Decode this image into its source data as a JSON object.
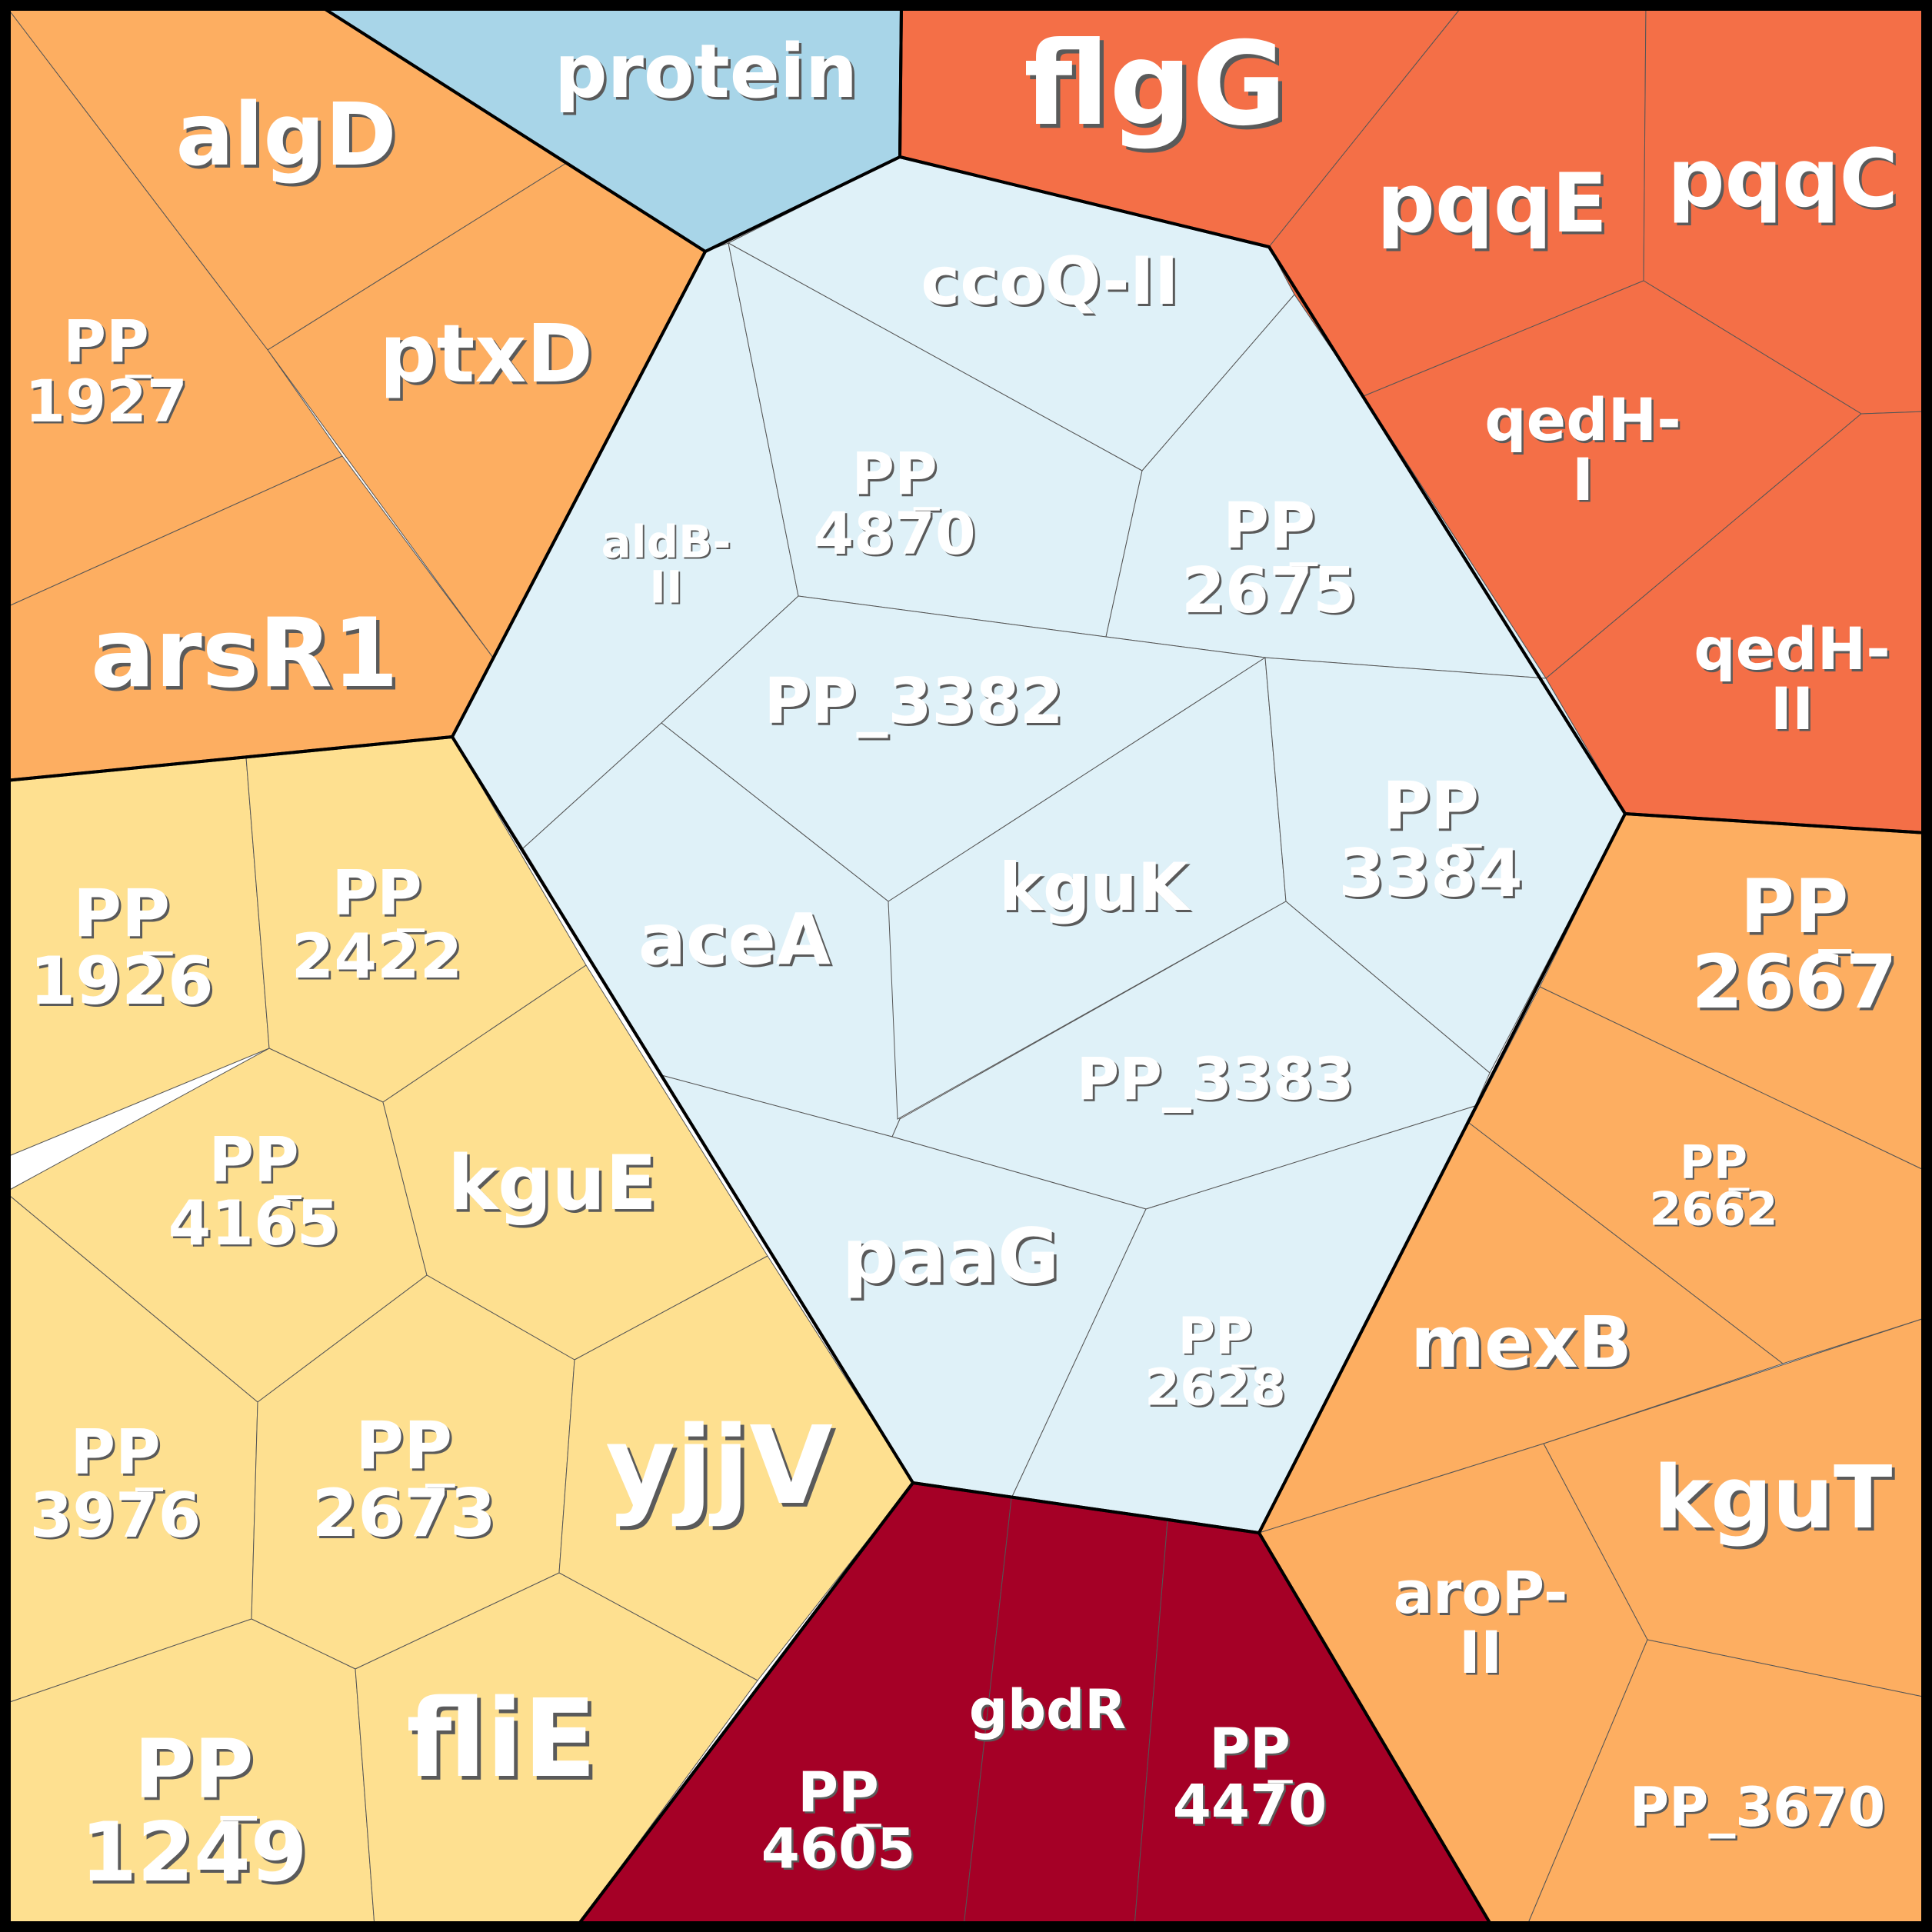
{
  "colors": {
    "grey": "#a8d5e8",
    "light_blue": "#dff1f8",
    "red_orange": "#f46f47",
    "orange": "#fdae61",
    "light_orange": "#fcb067",
    "yellow": "#fee090",
    "dark_red": "#a50026",
    "border": "#000000",
    "label": "#ffffff"
  },
  "groups": [
    {
      "id": "protein",
      "color": "grey",
      "cells": [
        {
          "label": "protein"
        }
      ]
    },
    {
      "id": "orange-left",
      "color": "orange",
      "cells": [
        {
          "label": "algD"
        },
        {
          "label": "ptxD"
        },
        {
          "label": "PP_1927"
        },
        {
          "label": "arsR1"
        }
      ]
    },
    {
      "id": "red-top",
      "color": "red_orange",
      "cells": [
        {
          "label": "flgG"
        },
        {
          "label": "pqqE"
        },
        {
          "label": "pqqC"
        },
        {
          "label": "qedH-I"
        },
        {
          "label": "qedH-II"
        }
      ]
    },
    {
      "id": "center",
      "color": "light_blue",
      "cells": [
        {
          "label": "ccoQ-II"
        },
        {
          "label": "aldB-II"
        },
        {
          "label": "PP_4870"
        },
        {
          "label": "PP_2675"
        },
        {
          "label": "PP_3382"
        },
        {
          "label": "aceA"
        },
        {
          "label": "kguK"
        },
        {
          "label": "PP_3384"
        },
        {
          "label": "PP_3383"
        },
        {
          "label": "paaG"
        },
        {
          "label": "PP_2628"
        }
      ]
    },
    {
      "id": "yellow-left",
      "color": "yellow",
      "cells": [
        {
          "label": "PP_1926"
        },
        {
          "label": "PP_2422"
        },
        {
          "label": "PP_4165"
        },
        {
          "label": "kguE"
        },
        {
          "label": "PP_3976"
        },
        {
          "label": "PP_2673"
        },
        {
          "label": "yjjV"
        },
        {
          "label": "PP_1249"
        },
        {
          "label": "fliE"
        }
      ]
    },
    {
      "id": "orange-right",
      "color": "orange",
      "cells": [
        {
          "label": "PP_2667"
        },
        {
          "label": "PP_2662"
        },
        {
          "label": "mexB"
        },
        {
          "label": "kguT"
        },
        {
          "label": "aroP-II"
        },
        {
          "label": "PP_3670"
        }
      ]
    },
    {
      "id": "dark-red-bottom",
      "color": "dark_red",
      "cells": [
        {
          "label": "PP_4605"
        },
        {
          "label": "gbdR"
        },
        {
          "label": "PP_4470"
        }
      ]
    }
  ]
}
